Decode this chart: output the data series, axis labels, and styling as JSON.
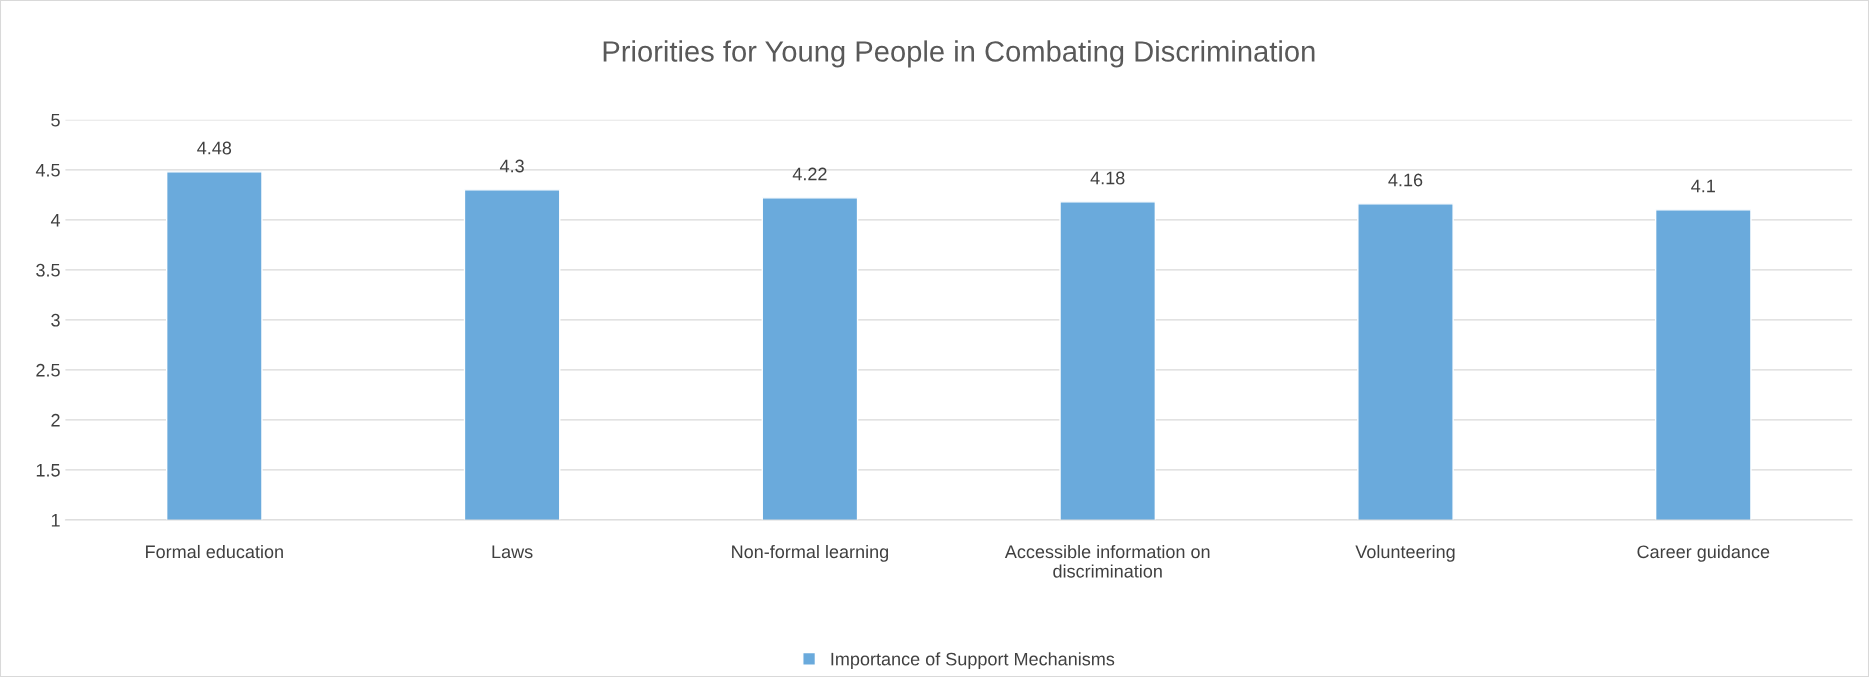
{
  "chart_data": {
    "type": "bar",
    "title": "Priorities for Young People in Combating Discrimination",
    "categories": [
      "Formal education",
      "Laws",
      "Non-formal learning",
      "Accessible information on\ndiscrimination",
      "Volunteering",
      "Career guidance"
    ],
    "series": [
      {
        "name": "Importance of Support Mechanisms",
        "color": "#6aaadc",
        "values": [
          4.48,
          4.3,
          4.22,
          4.18,
          4.16,
          4.1
        ]
      }
    ],
    "ylim": [
      1,
      5
    ],
    "yticks": [
      1,
      1.5,
      2,
      2.5,
      3,
      3.5,
      4,
      4.5,
      5
    ],
    "grid": "y",
    "legend": "bottom",
    "data_labels": true
  }
}
